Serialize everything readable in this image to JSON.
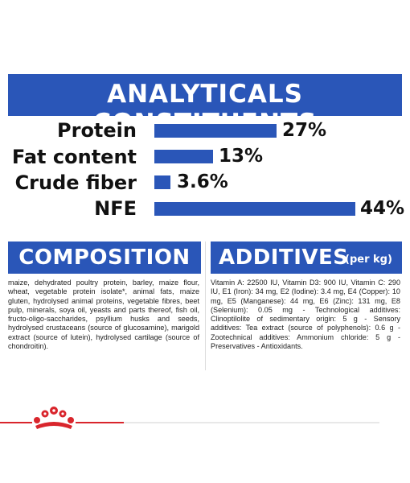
{
  "header": {
    "title": "ANALYTICALS CONSTITUENTS"
  },
  "analyticals": [
    {
      "label": "Protein",
      "value": "27%",
      "fraction": 0.27
    },
    {
      "label": "Fat content",
      "value": "13%",
      "fraction": 0.13
    },
    {
      "label": "Crude fiber",
      "value": "3.6%",
      "fraction": 0.036
    },
    {
      "label": "NFE",
      "value": "44%",
      "fraction": 0.44
    }
  ],
  "composition": {
    "title": "COMPOSITION",
    "text": "maize, dehydrated poultry protein, barley, maize flour, wheat, vegetable protein isolate*, animal fats, maize gluten, hydrolysed animal proteins, vegetable fibres, beet pulp, minerals, soya oil, yeasts and parts thereof, fish oil, fructo-oligo-saccharides, psyllium husks and seeds, hydrolysed crustaceans (source of glucosamine), marigold extract (source of lutein), hydrolysed cartilage (source of chondroitin)."
  },
  "additives": {
    "title": "ADDITIVES",
    "subtitle": "(per kg)",
    "text": "Vitamin A: 22500 IU, Vitamin D3: 900 IU, Vitamin C: 290 IU, E1 (Iron): 34 mg, E2 (Iodine): 3.4 mg, E4 (Copper): 10 mg, E5 (Manganese): 44 mg, E6 (Zinc): 131 mg, E8 (Selenium): 0.05 mg - Technological additives: Clinoptilolite of sedimentary origin: 5 g - Sensory additives: Tea extract (source of polyphenols): 0.6 g - Zootechnical additives: Ammonium chloride: 5 g - Preservatives - Antioxidants."
  },
  "colors": {
    "brand_blue": "#2a56b8",
    "brand_red": "#d9252c"
  },
  "icons": {
    "logo": "royal-crown-icon"
  }
}
